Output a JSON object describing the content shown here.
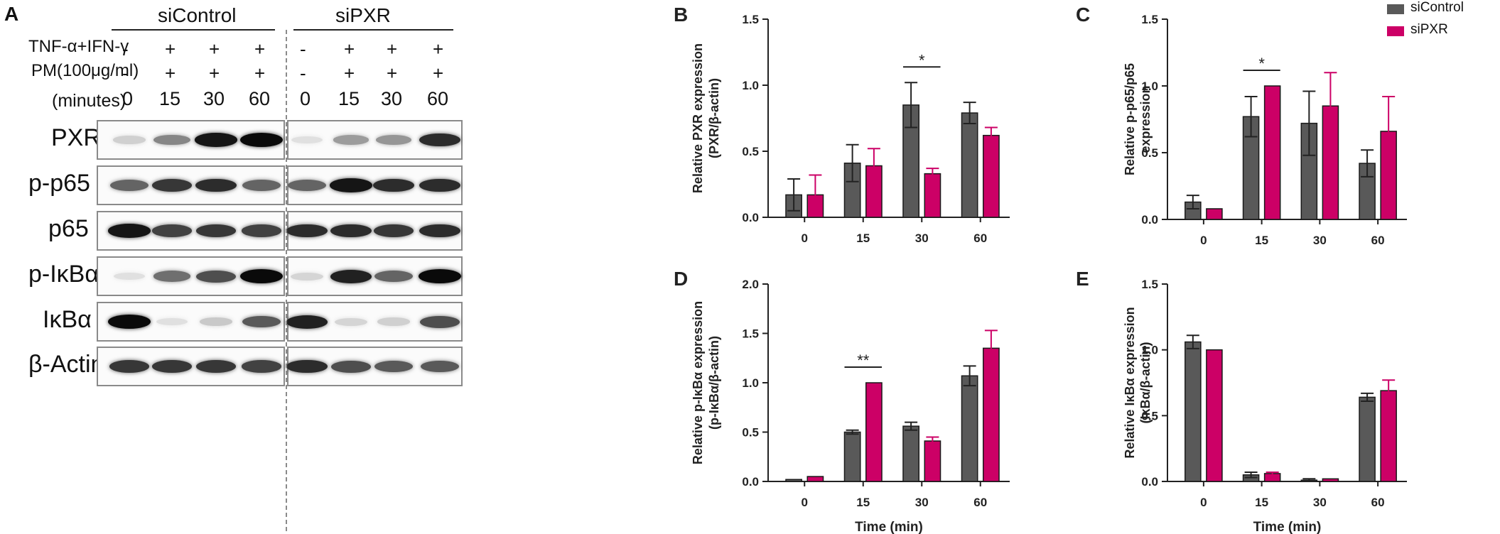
{
  "panel_a": {
    "letter": "A",
    "groups": [
      "siControl",
      "siPXR"
    ],
    "treatments": [
      {
        "label": "TNF-α+IFN-γ",
        "values": [
          "-",
          "+",
          "+",
          "+",
          "-",
          "+",
          "+",
          "+"
        ]
      },
      {
        "label": "PM(100μg/ml)",
        "values": [
          "-",
          "+",
          "+",
          "+",
          "-",
          "+",
          "+",
          "+"
        ]
      }
    ],
    "minutes_label": "(minutes)",
    "minutes": [
      "0",
      "15",
      "30",
      "60",
      "0",
      "15",
      "30",
      "60"
    ],
    "blots": [
      {
        "label": "PXR",
        "intensity": [
          0.12,
          0.45,
          0.95,
          1.0,
          0.05,
          0.35,
          0.38,
          0.85
        ]
      },
      {
        "label": "p-p65",
        "intensity": [
          0.6,
          0.8,
          0.85,
          0.6,
          0.6,
          0.95,
          0.85,
          0.85
        ]
      },
      {
        "label": "p65",
        "intensity": [
          0.95,
          0.75,
          0.8,
          0.75,
          0.85,
          0.85,
          0.8,
          0.85
        ]
      },
      {
        "label": "p-IκBα",
        "intensity": [
          0.05,
          0.55,
          0.7,
          1.0,
          0.1,
          0.9,
          0.6,
          1.0
        ]
      },
      {
        "label": "IκBα",
        "intensity": [
          1.0,
          0.05,
          0.15,
          0.65,
          0.9,
          0.1,
          0.12,
          0.7
        ]
      },
      {
        "label": "β-Actin",
        "intensity": [
          0.8,
          0.8,
          0.8,
          0.75,
          0.85,
          0.7,
          0.65,
          0.65
        ]
      }
    ]
  },
  "legend": [
    {
      "name": "siControl",
      "color": "#595959"
    },
    {
      "name": "siPXR",
      "color": "#cc0066"
    }
  ],
  "chart_data": [
    {
      "letter": "B",
      "type": "bar",
      "categories": [
        "0",
        "15",
        "30",
        "60"
      ],
      "ylabel": "Relative PXR expression (PXR/β-actin)",
      "ylabel_lines": [
        "Relative PXR expression",
        "(PXR/β-actin)"
      ],
      "xlabel": "",
      "ylim": [
        0,
        1.5
      ],
      "yticks": [
        "0.0",
        "0.5",
        "1.0",
        "1.5"
      ],
      "series": [
        {
          "name": "siControl",
          "values": [
            0.17,
            0.41,
            0.85,
            0.79
          ],
          "errors": [
            0.12,
            0.14,
            0.17,
            0.08
          ]
        },
        {
          "name": "siPXR",
          "values": [
            0.17,
            0.39,
            0.33,
            0.62
          ],
          "errors": [
            0.15,
            0.13,
            0.04,
            0.06
          ]
        }
      ],
      "annotations": [
        {
          "category": "30",
          "text": "*"
        }
      ]
    },
    {
      "letter": "C",
      "type": "bar",
      "categories": [
        "0",
        "15",
        "30",
        "60"
      ],
      "ylabel": "Relative p-p65/p65 expression",
      "ylabel_lines": [
        "Relative p-p65/p65",
        "expression"
      ],
      "xlabel": "",
      "ylim": [
        0,
        1.5
      ],
      "yticks": [
        "0.0",
        "0.5",
        "1.0",
        "1.5"
      ],
      "series": [
        {
          "name": "siControl",
          "values": [
            0.13,
            0.77,
            0.72,
            0.42
          ],
          "errors": [
            0.05,
            0.15,
            0.24,
            0.1
          ]
        },
        {
          "name": "siPXR",
          "values": [
            0.08,
            1.0,
            0.85,
            0.66
          ],
          "errors": [
            0.0,
            0.0,
            0.25,
            0.26
          ]
        }
      ],
      "annotations": [
        {
          "category": "15",
          "text": "*"
        }
      ]
    },
    {
      "letter": "D",
      "type": "bar",
      "categories": [
        "0",
        "15",
        "30",
        "60"
      ],
      "ylabel": "Relative p-IκBα expression (p-IκBα/β-actin)",
      "ylabel_lines": [
        "Relative p-IκBα expression",
        "(p-IκBα/β-actin)"
      ],
      "xlabel": "Time (min)",
      "ylim": [
        0,
        2.0
      ],
      "yticks": [
        "0.0",
        "0.5",
        "1.0",
        "1.5",
        "2.0"
      ],
      "series": [
        {
          "name": "siControl",
          "values": [
            0.02,
            0.5,
            0.56,
            1.07
          ],
          "errors": [
            0.0,
            0.02,
            0.04,
            0.1
          ]
        },
        {
          "name": "siPXR",
          "values": [
            0.05,
            1.0,
            0.41,
            1.35
          ],
          "errors": [
            0.0,
            0.0,
            0.04,
            0.18
          ]
        }
      ],
      "annotations": [
        {
          "category": "15",
          "text": "**"
        }
      ]
    },
    {
      "letter": "E",
      "type": "bar",
      "categories": [
        "0",
        "15",
        "30",
        "60"
      ],
      "ylabel": "Relative IκBα expression (IκBα/β-actin)",
      "ylabel_lines": [
        "Relative IκBα expression",
        "(IκBα/β-actin)"
      ],
      "xlabel": "Time (min)",
      "ylim": [
        0,
        1.5
      ],
      "yticks": [
        "0.0",
        "0.5",
        "1.0",
        "1.5"
      ],
      "series": [
        {
          "name": "siControl",
          "values": [
            1.06,
            0.05,
            0.01,
            0.64
          ],
          "errors": [
            0.05,
            0.02,
            0.01,
            0.03
          ]
        },
        {
          "name": "siPXR",
          "values": [
            1.0,
            0.06,
            0.02,
            0.69
          ],
          "errors": [
            0.0,
            0.01,
            0.0,
            0.08
          ]
        }
      ],
      "annotations": []
    }
  ]
}
